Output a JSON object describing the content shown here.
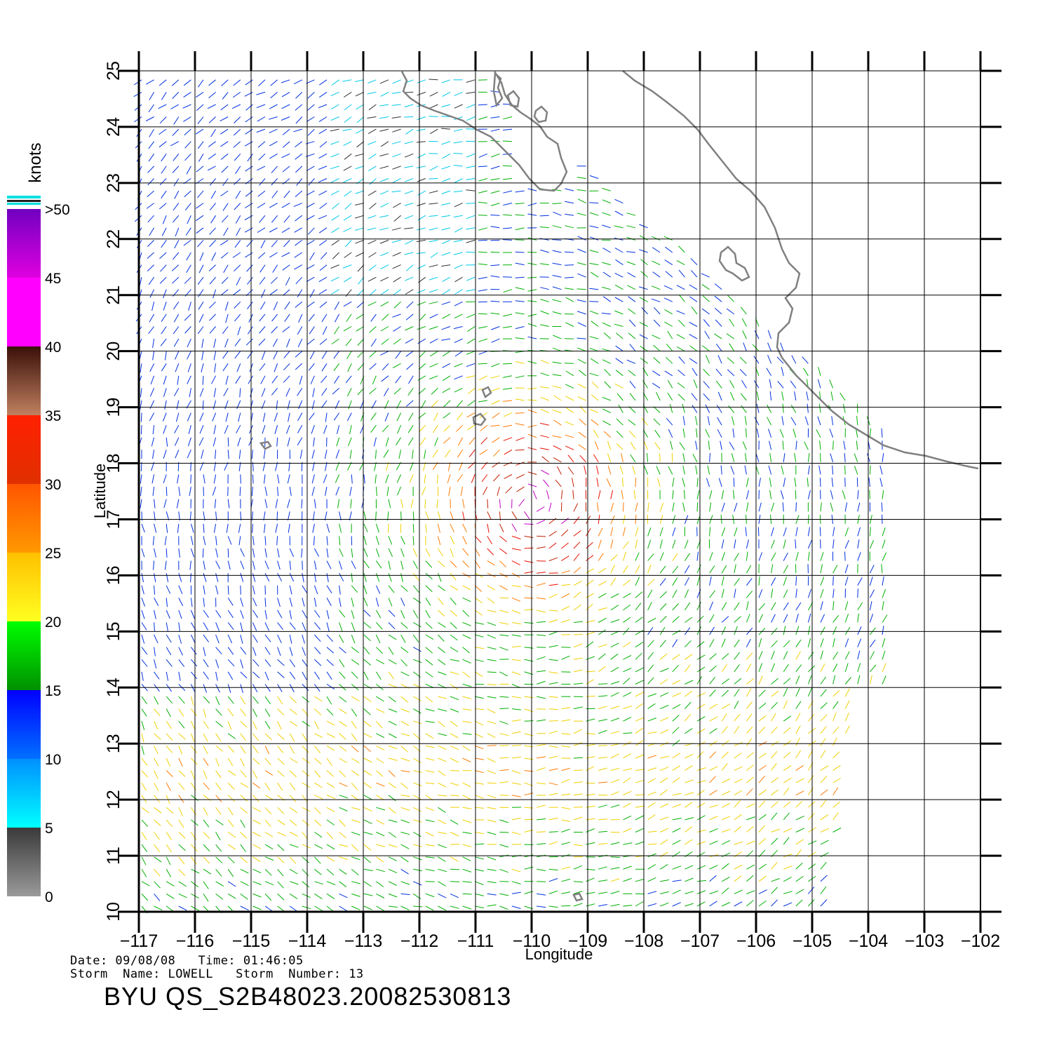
{
  "map": {
    "x_axis": {
      "label": "Longitude",
      "min": -117,
      "max": -102,
      "ticks": [
        "-117",
        "-116",
        "-115",
        "-114",
        "-113",
        "-112",
        "-111",
        "-110",
        "-109",
        "-108",
        "-107",
        "-106",
        "-105",
        "-104",
        "-103",
        "-102"
      ]
    },
    "y_axis": {
      "label": "Latitude",
      "min": 10,
      "max": 25,
      "ticks": [
        "10",
        "11",
        "12",
        "13",
        "14",
        "15",
        "16",
        "17",
        "18",
        "19",
        "20",
        "21",
        "22",
        "23",
        "24",
        "25"
      ]
    },
    "coastline_color": "#808080",
    "grid_color": "#000000"
  },
  "legend": {
    "title": "knots",
    "bins": [
      {
        "label": "0",
        "color": "#555555"
      },
      {
        "label": "5",
        "color": "#00f0f0"
      },
      {
        "label": "10",
        "color": "#0050ff"
      },
      {
        "label": "15",
        "color": "#00c000"
      },
      {
        "label": "20",
        "color": "#ffe600"
      },
      {
        "label": "25",
        "color": "#ff8800"
      },
      {
        "label": "30",
        "color": "#ff2000"
      },
      {
        "label": "35",
        "color": "#7a3a20"
      },
      {
        "label": "40",
        "color": "#e000e0"
      },
      {
        "label": "45",
        "color": "#7000c0"
      },
      {
        "label": ">50",
        "color": "#000000"
      }
    ]
  },
  "info": {
    "line1": "Date: 09/08/08   Time: 01:46:05",
    "line2": "Storm  Name: LOWELL   Storm  Number: 13",
    "product": "BYU  QS_S2B48023.20082530813"
  }
}
